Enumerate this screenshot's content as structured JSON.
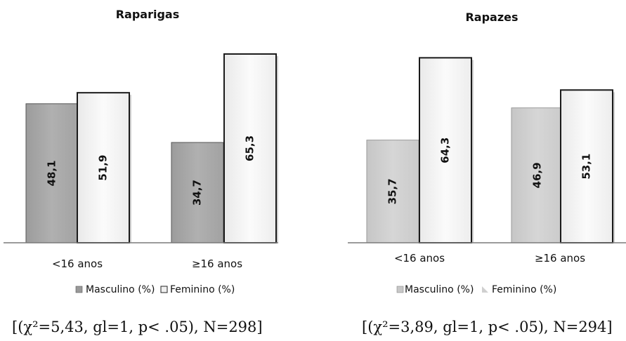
{
  "chart_data": [
    {
      "type": "bar",
      "title": "Raparigas",
      "categories": [
        "<16 anos",
        "≥16 anos"
      ],
      "series": [
        {
          "name": "Masculino (%)",
          "values": [
            48.1,
            34.7
          ],
          "value_labels": [
            "48,1",
            "34,7"
          ]
        },
        {
          "name": "Feminino (%)",
          "values": [
            51.9,
            65.3
          ],
          "value_labels": [
            "51,9",
            "65,3"
          ]
        }
      ],
      "legend_position": "bottom",
      "note": "[(χ²=5,43, gl=1, p< .05), N=298]",
      "colors": {
        "masculino": "#a8a8a8",
        "feminino": "#f3f3f3",
        "masculino_legend": "#9a9a9a"
      }
    },
    {
      "type": "bar",
      "title": "Rapazes",
      "categories": [
        "<16 anos",
        "≥16 anos"
      ],
      "series": [
        {
          "name": "Masculino (%)",
          "values": [
            35.7,
            46.9
          ],
          "value_labels": [
            "35,7",
            "46,9"
          ]
        },
        {
          "name": "Feminino (%)",
          "values": [
            64.3,
            53.1
          ],
          "value_labels": [
            "64,3",
            "53,1"
          ]
        }
      ],
      "legend_position": "bottom",
      "note": "[(χ²=3,89, gl=1, p< .05), N=294]",
      "colors": {
        "masculino": "#cdcdcd",
        "feminino": "#f3f3f3",
        "masculino_legend": "#c8c8c8"
      }
    }
  ]
}
